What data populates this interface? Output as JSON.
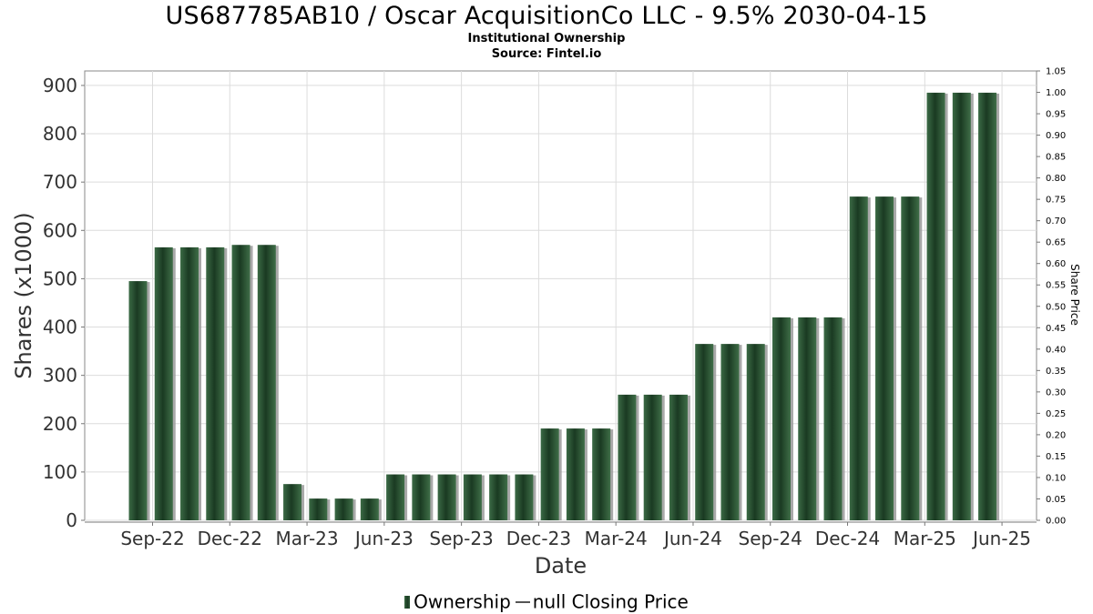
{
  "header": {
    "title": "US687785AB10 / Oscar AcquisitionCo LLC - 9.5% 2030-04-15",
    "subtitle": "Institutional Ownership",
    "source": "Source: Fintel.io"
  },
  "legend": {
    "ownership": "Ownership",
    "price": "null Closing Price"
  },
  "colors": {
    "bar_dark": "#1e4028",
    "bar_light": "#3b6a45",
    "bar_shadow": "#9a9a9a",
    "grid": "#dcdcdc",
    "frame": "#888888"
  },
  "chart_data": {
    "type": "bar",
    "title": "US687785AB10 / Oscar AcquisitionCo LLC - 9.5% 2030-04-15",
    "xlabel": "Date",
    "ylabel": "Shares (x1000)",
    "y2label": "Share Price",
    "ylim": [
      0,
      930
    ],
    "y2lim": [
      0,
      1.05
    ],
    "yticks": [
      "0",
      "100",
      "200",
      "300",
      "400",
      "500",
      "600",
      "700",
      "800",
      "900"
    ],
    "y2ticks": [
      "0.00",
      "0.05",
      "0.10",
      "0.15",
      "0.20",
      "0.25",
      "0.30",
      "0.35",
      "0.40",
      "0.45",
      "0.50",
      "0.55",
      "0.60",
      "0.65",
      "0.70",
      "0.75",
      "0.80",
      "0.85",
      "0.90",
      "0.95",
      "1.00",
      "1.05"
    ],
    "xticks": [
      "Sep-22",
      "Dec-22",
      "Mar-23",
      "Jun-23",
      "Sep-23",
      "Dec-23",
      "Mar-24",
      "Jun-24",
      "Sep-24",
      "Dec-24",
      "Mar-25",
      "Jun-25"
    ],
    "grid": true,
    "legend_position": "bottom",
    "series": [
      {
        "name": "Ownership",
        "values": [
          495,
          565,
          565,
          565,
          570,
          570,
          75,
          45,
          45,
          45,
          95,
          95,
          95,
          95,
          95,
          95,
          190,
          190,
          190,
          260,
          260,
          260,
          365,
          365,
          365,
          420,
          420,
          420,
          670,
          670,
          670,
          885,
          885,
          885
        ]
      }
    ]
  }
}
